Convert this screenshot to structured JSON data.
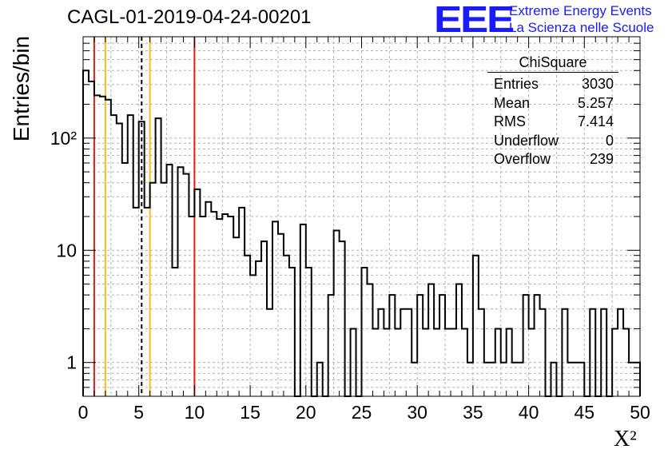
{
  "title": "CAGL-01-2019-04-24-00201",
  "logo": {
    "mark": "EEE",
    "line1": "Extreme Energy Events",
    "line2": "La Scienza nelle Scuole",
    "color": "#1a1aff"
  },
  "stats_box": {
    "name": "ChiSquare",
    "rows": [
      {
        "label": "Entries",
        "value": "3030"
      },
      {
        "label": "Mean",
        "value": "5.257"
      },
      {
        "label": "RMS",
        "value": "7.414"
      },
      {
        "label": "Underflow",
        "value": "0"
      },
      {
        "label": "Overflow",
        "value": "239"
      }
    ]
  },
  "chart_data": {
    "type": "bar",
    "style": "step-histogram",
    "title": "CAGL-01-2019-04-24-00201",
    "xlabel": "X²",
    "ylabel": "Entries/bin",
    "xlim": [
      0,
      50
    ],
    "ylim": [
      0.5,
      800
    ],
    "yscale": "log",
    "grid": true,
    "bin_width": 0.5,
    "x_ticks": [
      0,
      5,
      10,
      15,
      20,
      25,
      30,
      35,
      40,
      45,
      50
    ],
    "y_ticks": [
      {
        "value": 1,
        "label": "1"
      },
      {
        "value": 10,
        "label": "10"
      },
      {
        "value": 100,
        "label": "10²"
      }
    ],
    "values": [
      400,
      320,
      240,
      235,
      220,
      160,
      135,
      60,
      160,
      24,
      140,
      24,
      40,
      150,
      40,
      58,
      7,
      55,
      48,
      20,
      35,
      20,
      27,
      22,
      19,
      21,
      20,
      13,
      24,
      9,
      6,
      8,
      12,
      3,
      18,
      14,
      9,
      7,
      0.01,
      17,
      7,
      0.01,
      1,
      0.01,
      4,
      15,
      12,
      0,
      2,
      0,
      7,
      5,
      2,
      3,
      2,
      4,
      2,
      3,
      3,
      1,
      4,
      2,
      5,
      2,
      4,
      2,
      2,
      5,
      2,
      1,
      9,
      3,
      1,
      1,
      2,
      1,
      2,
      1,
      1,
      4,
      2,
      4,
      3,
      0,
      1,
      0,
      3,
      1,
      1,
      1,
      0,
      3,
      0,
      3,
      0,
      2,
      3,
      2,
      1,
      1
    ],
    "vertical_lines": [
      {
        "x": 1,
        "color": "#e0201a",
        "style": "solid"
      },
      {
        "x": 2,
        "color": "#f0c020",
        "style": "solid"
      },
      {
        "x": 5.257,
        "color": "#000000",
        "style": "dashed"
      },
      {
        "x": 6,
        "color": "#f0c020",
        "style": "solid"
      },
      {
        "x": 10,
        "color": "#e0201a",
        "style": "solid"
      }
    ]
  }
}
